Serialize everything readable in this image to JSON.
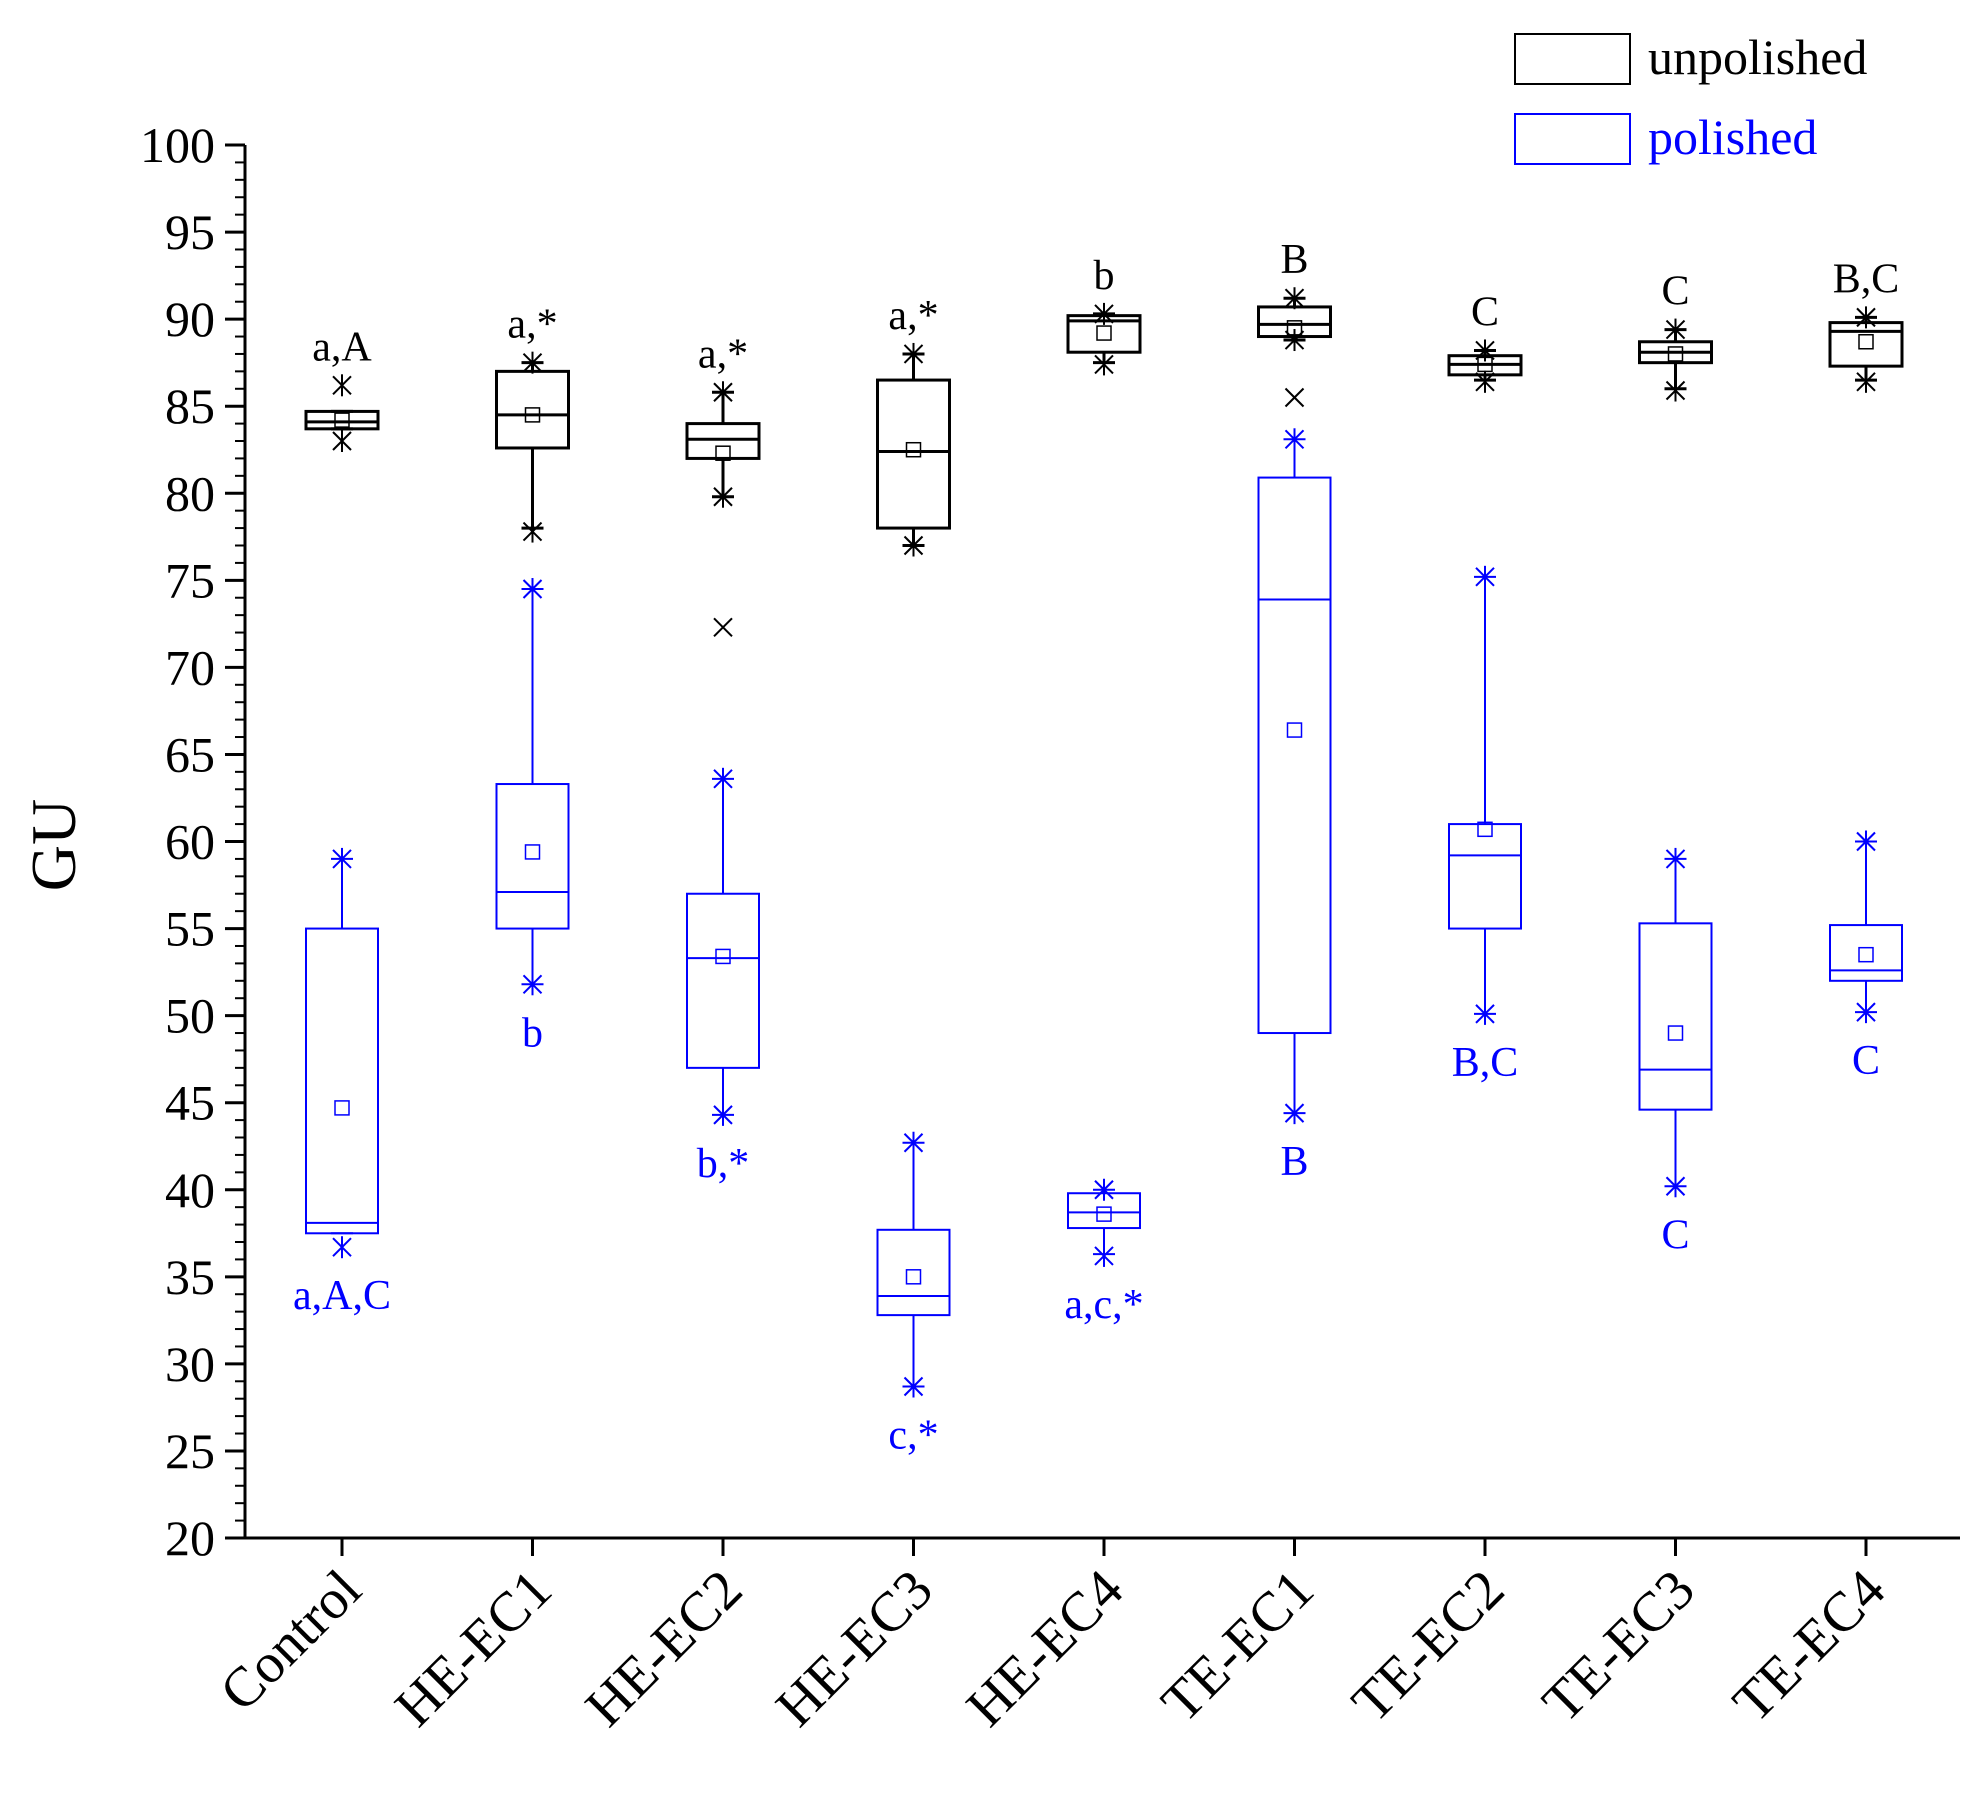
{
  "chart_data": {
    "type": "box",
    "ylabel": "GU",
    "xlabel": "",
    "ylim": [
      20,
      100
    ],
    "ytick_step": 5,
    "yminor_step": 1,
    "yticks": [
      "20",
      "25",
      "30",
      "35",
      "40",
      "45",
      "50",
      "55",
      "60",
      "65",
      "70",
      "75",
      "80",
      "85",
      "90",
      "95",
      "100"
    ],
    "categories": [
      "Control",
      "HE-EC1",
      "HE-EC2",
      "HE-EC3",
      "HE-EC4",
      "TE-EC1",
      "TE-EC2",
      "TE-EC3",
      "TE-EC4"
    ],
    "legend": {
      "position": "top-right",
      "entries": [
        {
          "name": "unpolished",
          "color": "#000000"
        },
        {
          "name": "polished",
          "color": "#0000ff"
        }
      ]
    },
    "series": [
      {
        "name": "unpolished",
        "color": "#000000",
        "boxes": [
          {
            "q1": 83.7,
            "median": 84.1,
            "q3": 84.7,
            "mean": 84.2,
            "whisker_low": 83.7,
            "whisker_high": 84.7,
            "min": 83.0,
            "max": 86.2,
            "outliers": [],
            "label": "a,A"
          },
          {
            "q1": 82.6,
            "median": 84.5,
            "q3": 87.0,
            "mean": 84.5,
            "whisker_low": 78.0,
            "whisker_high": 87.5,
            "min": 77.8,
            "max": 87.5,
            "outliers": [],
            "label": "a,*"
          },
          {
            "q1": 82.0,
            "median": 83.1,
            "q3": 84.0,
            "mean": 82.3,
            "whisker_low": 79.8,
            "whisker_high": 85.8,
            "min": 79.8,
            "max": 85.8,
            "outliers": [
              72.3
            ],
            "label": "a,*"
          },
          {
            "q1": 78.0,
            "median": 82.4,
            "q3": 86.5,
            "mean": 82.5,
            "whisker_low": 77.0,
            "whisker_high": 88.0,
            "min": 77.0,
            "max": 88.0,
            "outliers": [],
            "label": "a,*"
          },
          {
            "q1": 88.1,
            "median": 89.9,
            "q3": 90.2,
            "mean": 89.2,
            "whisker_low": 87.5,
            "whisker_high": 90.3,
            "min": 87.4,
            "max": 90.3,
            "outliers": [],
            "label": "b"
          },
          {
            "q1": 89.0,
            "median": 89.7,
            "q3": 90.7,
            "mean": 89.5,
            "whisker_low": 88.8,
            "whisker_high": 91.2,
            "min": 88.8,
            "max": 91.2,
            "outliers": [
              85.5
            ],
            "label": "B"
          },
          {
            "q1": 86.8,
            "median": 87.4,
            "q3": 87.9,
            "mean": 87.4,
            "whisker_low": 86.5,
            "whisker_high": 88.2,
            "min": 86.4,
            "max": 88.2,
            "outliers": [],
            "label": "C"
          },
          {
            "q1": 87.5,
            "median": 88.1,
            "q3": 88.7,
            "mean": 88.0,
            "whisker_low": 86.0,
            "whisker_high": 89.4,
            "min": 85.9,
            "max": 89.4,
            "outliers": [],
            "label": "C"
          },
          {
            "q1": 87.3,
            "median": 89.3,
            "q3": 89.8,
            "mean": 88.7,
            "whisker_low": 86.5,
            "whisker_high": 90.1,
            "min": 86.4,
            "max": 90.1,
            "outliers": [],
            "label": "B,C"
          }
        ]
      },
      {
        "name": "polished",
        "color": "#0000ff",
        "boxes": [
          {
            "q1": 37.5,
            "median": 38.1,
            "q3": 55.0,
            "mean": 44.7,
            "whisker_low": 37.5,
            "whisker_high": 59.0,
            "min": 36.7,
            "max": 59.0,
            "outliers": [],
            "label": "a,A,C"
          },
          {
            "q1": 55.0,
            "median": 57.1,
            "q3": 63.3,
            "mean": 59.4,
            "whisker_low": 51.8,
            "whisker_high": 74.5,
            "min": 51.8,
            "max": 74.5,
            "outliers": [],
            "label": "b"
          },
          {
            "q1": 47.0,
            "median": 53.3,
            "q3": 57.0,
            "mean": 53.4,
            "whisker_low": 44.3,
            "whisker_high": 63.6,
            "min": 44.3,
            "max": 63.6,
            "outliers": [],
            "label": "b,*"
          },
          {
            "q1": 32.8,
            "median": 33.9,
            "q3": 37.7,
            "mean": 35.0,
            "whisker_low": 28.7,
            "whisker_high": 42.7,
            "min": 28.7,
            "max": 42.7,
            "outliers": [],
            "label": "c,*"
          },
          {
            "q1": 37.8,
            "median": 38.7,
            "q3": 39.8,
            "mean": 38.6,
            "whisker_low": 36.3,
            "whisker_high": 40.0,
            "min": 36.2,
            "max": 40.0,
            "outliers": [],
            "label": "a,c,*"
          },
          {
            "q1": 49.0,
            "median": 73.9,
            "q3": 80.9,
            "mean": 66.4,
            "whisker_low": 44.4,
            "whisker_high": 83.1,
            "min": 44.4,
            "max": 83.1,
            "outliers": [],
            "label": "B"
          },
          {
            "q1": 55.0,
            "median": 59.2,
            "q3": 61.0,
            "mean": 60.7,
            "whisker_low": 50.1,
            "whisker_high": 75.2,
            "min": 50.1,
            "max": 75.2,
            "outliers": [],
            "label": "B,C"
          },
          {
            "q1": 44.6,
            "median": 46.9,
            "q3": 55.3,
            "mean": 49.0,
            "whisker_low": 40.2,
            "whisker_high": 59.0,
            "min": 40.2,
            "max": 59.0,
            "outliers": [],
            "label": "C"
          },
          {
            "q1": 52.0,
            "median": 52.6,
            "q3": 55.2,
            "mean": 53.5,
            "whisker_low": 50.2,
            "whisker_high": 60.0,
            "min": 50.2,
            "max": 60.0,
            "outliers": [],
            "label": "C"
          }
        ]
      }
    ]
  }
}
